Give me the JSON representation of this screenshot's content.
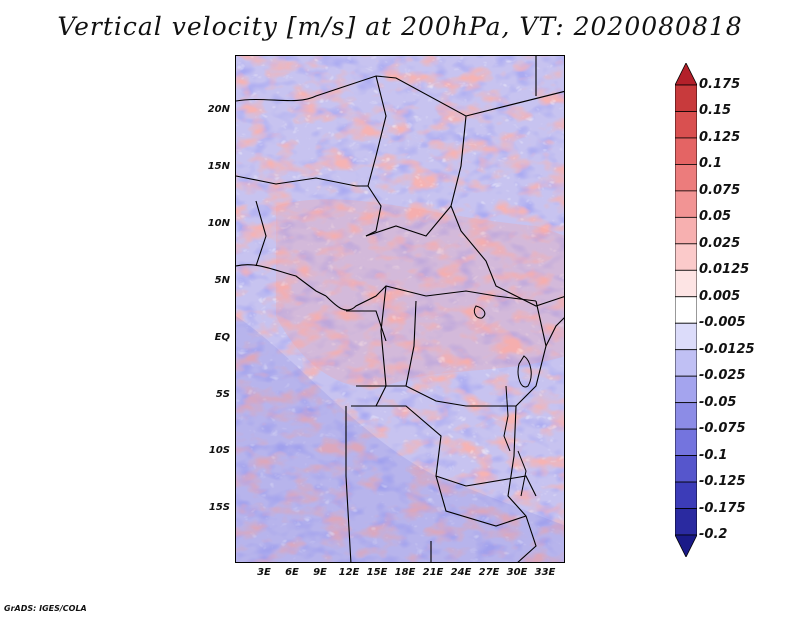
{
  "title": "Vertical velocity [m/s] at 200hPa, VT: 2020080818",
  "footer": "GrADS: IGES/COLA",
  "lat_labels": [
    "20N",
    "15N",
    "10N",
    "5N",
    "EQ",
    "5S",
    "10S",
    "15S"
  ],
  "lon_labels": [
    "3E",
    "6E",
    "9E",
    "12E",
    "15E",
    "18E",
    "21E",
    "24E",
    "27E",
    "30E",
    "33E"
  ],
  "colorbar": {
    "labels": [
      "0.175",
      "0.15",
      "0.125",
      "0.1",
      "0.075",
      "0.05",
      "0.025",
      "0.0125",
      "0.005",
      "-0.005",
      "-0.0125",
      "-0.025",
      "-0.05",
      "-0.075",
      "-0.1",
      "-0.125",
      "-0.175",
      "-0.2"
    ],
    "colors": [
      "#b3202a",
      "#c83a3c",
      "#d95050",
      "#e46464",
      "#ec7c7c",
      "#f29494",
      "#f7b0b0",
      "#fbcaca",
      "#fde4e4",
      "#ffffff",
      "#dcdcfa",
      "#c0c0f4",
      "#a4a4ee",
      "#8c8ce6",
      "#7474de",
      "#5656cc",
      "#3c3cb8",
      "#2a2aa0",
      "#1a1a88"
    ]
  }
}
